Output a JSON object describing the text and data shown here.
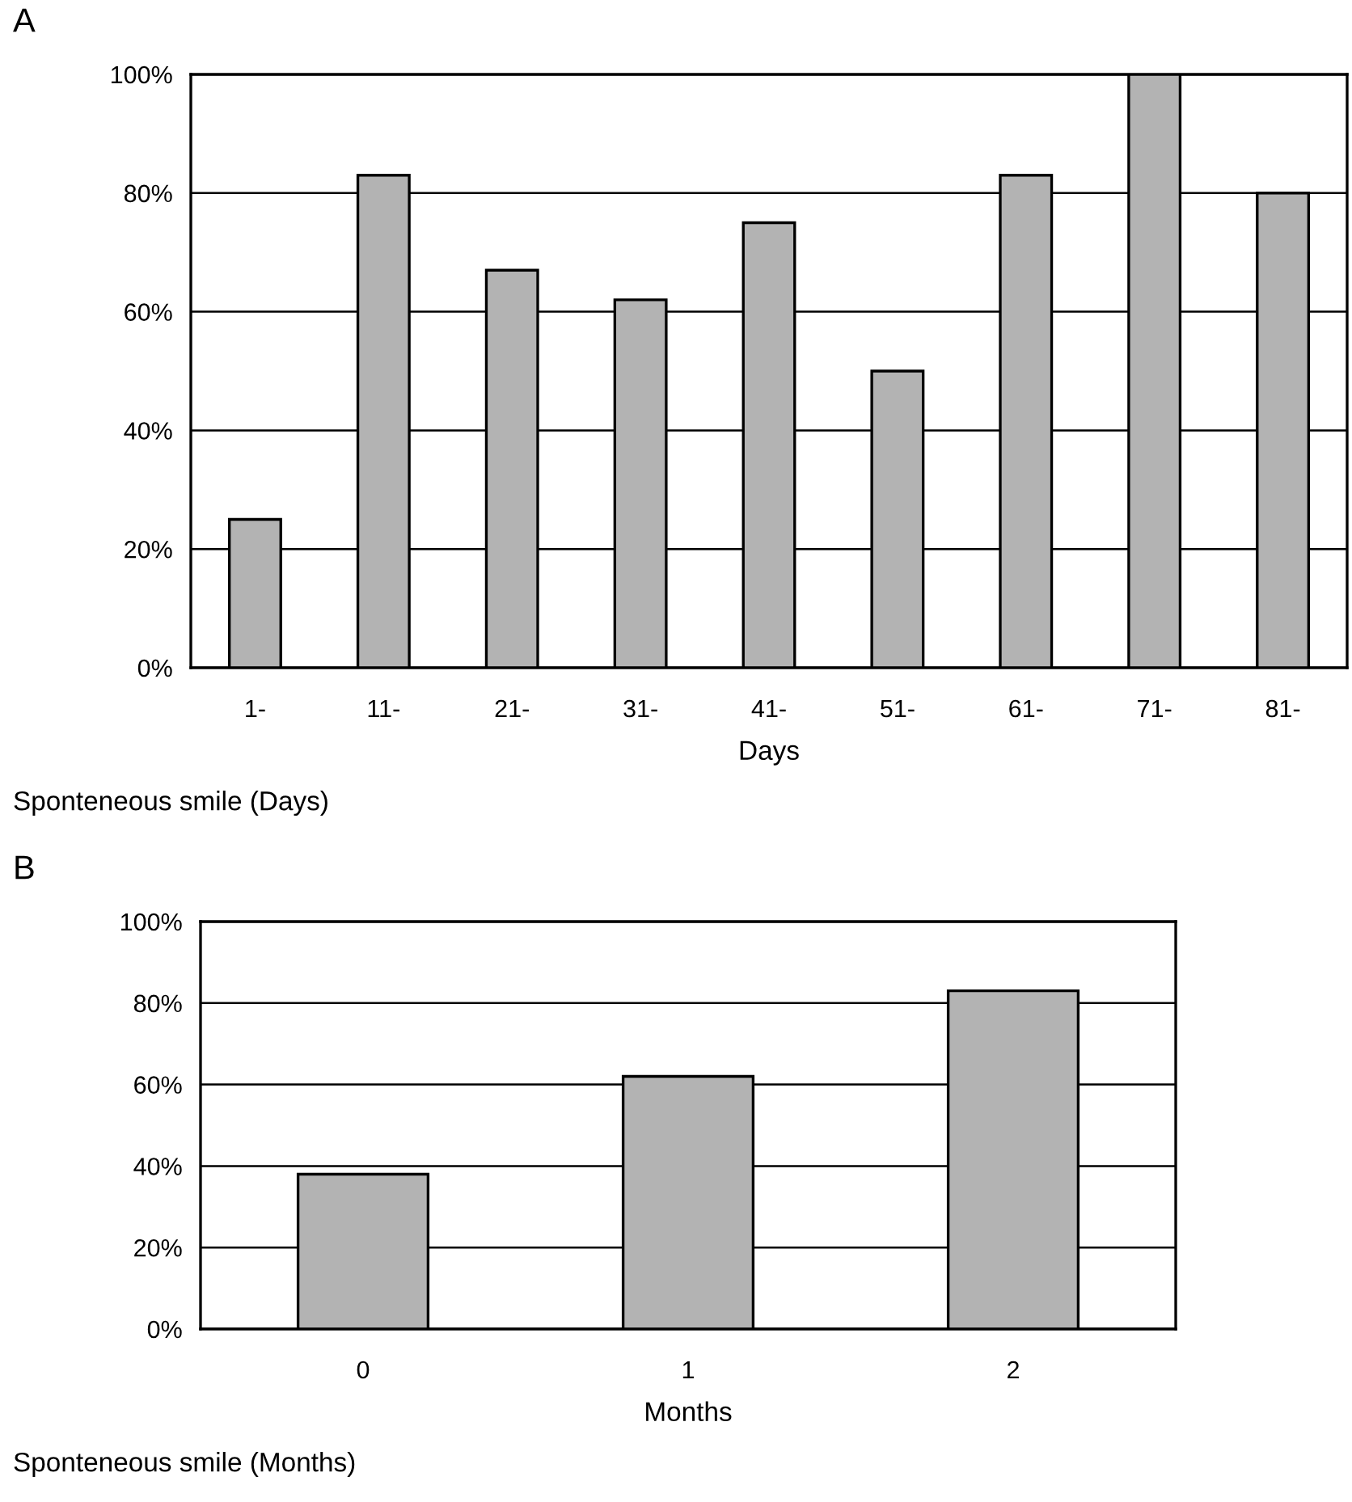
{
  "chart_data": [
    {
      "type": "bar",
      "title": "A",
      "xlabel": "Days",
      "categories": [
        "1-",
        "11-",
        "21-",
        "31-",
        "41-",
        "51-",
        "61-",
        "71-",
        "81-"
      ],
      "values": [
        25,
        83,
        67,
        62,
        75,
        50,
        83,
        100,
        80
      ],
      "color": "#b3b3b3",
      "ylim": [
        0,
        100
      ],
      "yticks": [
        {
          "value": 0,
          "label": "0%"
        },
        {
          "value": 20,
          "label": "20%"
        },
        {
          "value": 40,
          "label": "40%"
        },
        {
          "value": 60,
          "label": "60%"
        },
        {
          "value": 80,
          "label": "80%"
        },
        {
          "value": 100,
          "label": "100%"
        }
      ],
      "grid": "y",
      "annotations": [
        "Sponteneous smile (Days)"
      ]
    },
    {
      "type": "bar",
      "title": "B",
      "xlabel": "Months",
      "categories": [
        "0",
        "1",
        "2"
      ],
      "values": [
        38,
        62,
        83
      ],
      "color": "#b3b3b3",
      "ylim": [
        0,
        100
      ],
      "yticks": [
        {
          "value": 0,
          "label": "0%"
        },
        {
          "value": 20,
          "label": "20%"
        },
        {
          "value": 40,
          "label": "40%"
        },
        {
          "value": 60,
          "label": "60%"
        },
        {
          "value": 80,
          "label": "80%"
        },
        {
          "value": 100,
          "label": "100%"
        }
      ],
      "grid": "y",
      "annotations": [
        "Sponteneous smile (Months)"
      ]
    }
  ]
}
